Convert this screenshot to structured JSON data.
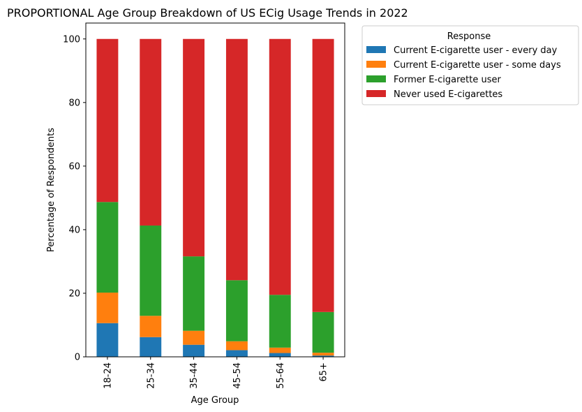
{
  "chart_data": {
    "type": "bar",
    "stacked": true,
    "title": "PROPORTIONAL Age Group Breakdown of US ECig Usage Trends in 2022",
    "xlabel": "Age Group",
    "ylabel": "Percentage of Respondents",
    "ylim": [
      0,
      105
    ],
    "yticks": [
      0,
      20,
      40,
      60,
      80,
      100
    ],
    "grid": false,
    "categories": [
      "18-24",
      "25-34",
      "35-44",
      "45-54",
      "55-64",
      "65+"
    ],
    "legend": {
      "title": "Response",
      "placement": "outside-top-right"
    },
    "series": [
      {
        "name": "Current E-cigarette user - every day",
        "color": "#1f77b4",
        "values": [
          10.6,
          6.2,
          3.8,
          2.1,
          1.2,
          0.4
        ]
      },
      {
        "name": "Current E-cigarette user - some days",
        "color": "#ff7f0e",
        "values": [
          9.6,
          6.7,
          4.4,
          2.8,
          1.7,
          0.9
        ]
      },
      {
        "name": "Former E-cigarette user",
        "color": "#2ca02c",
        "values": [
          28.5,
          28.4,
          23.4,
          19.2,
          16.6,
          12.8
        ]
      },
      {
        "name": "Never used E-cigarettes",
        "color": "#d62728",
        "values": [
          51.3,
          58.7,
          68.4,
          75.9,
          80.5,
          85.9
        ]
      }
    ]
  }
}
